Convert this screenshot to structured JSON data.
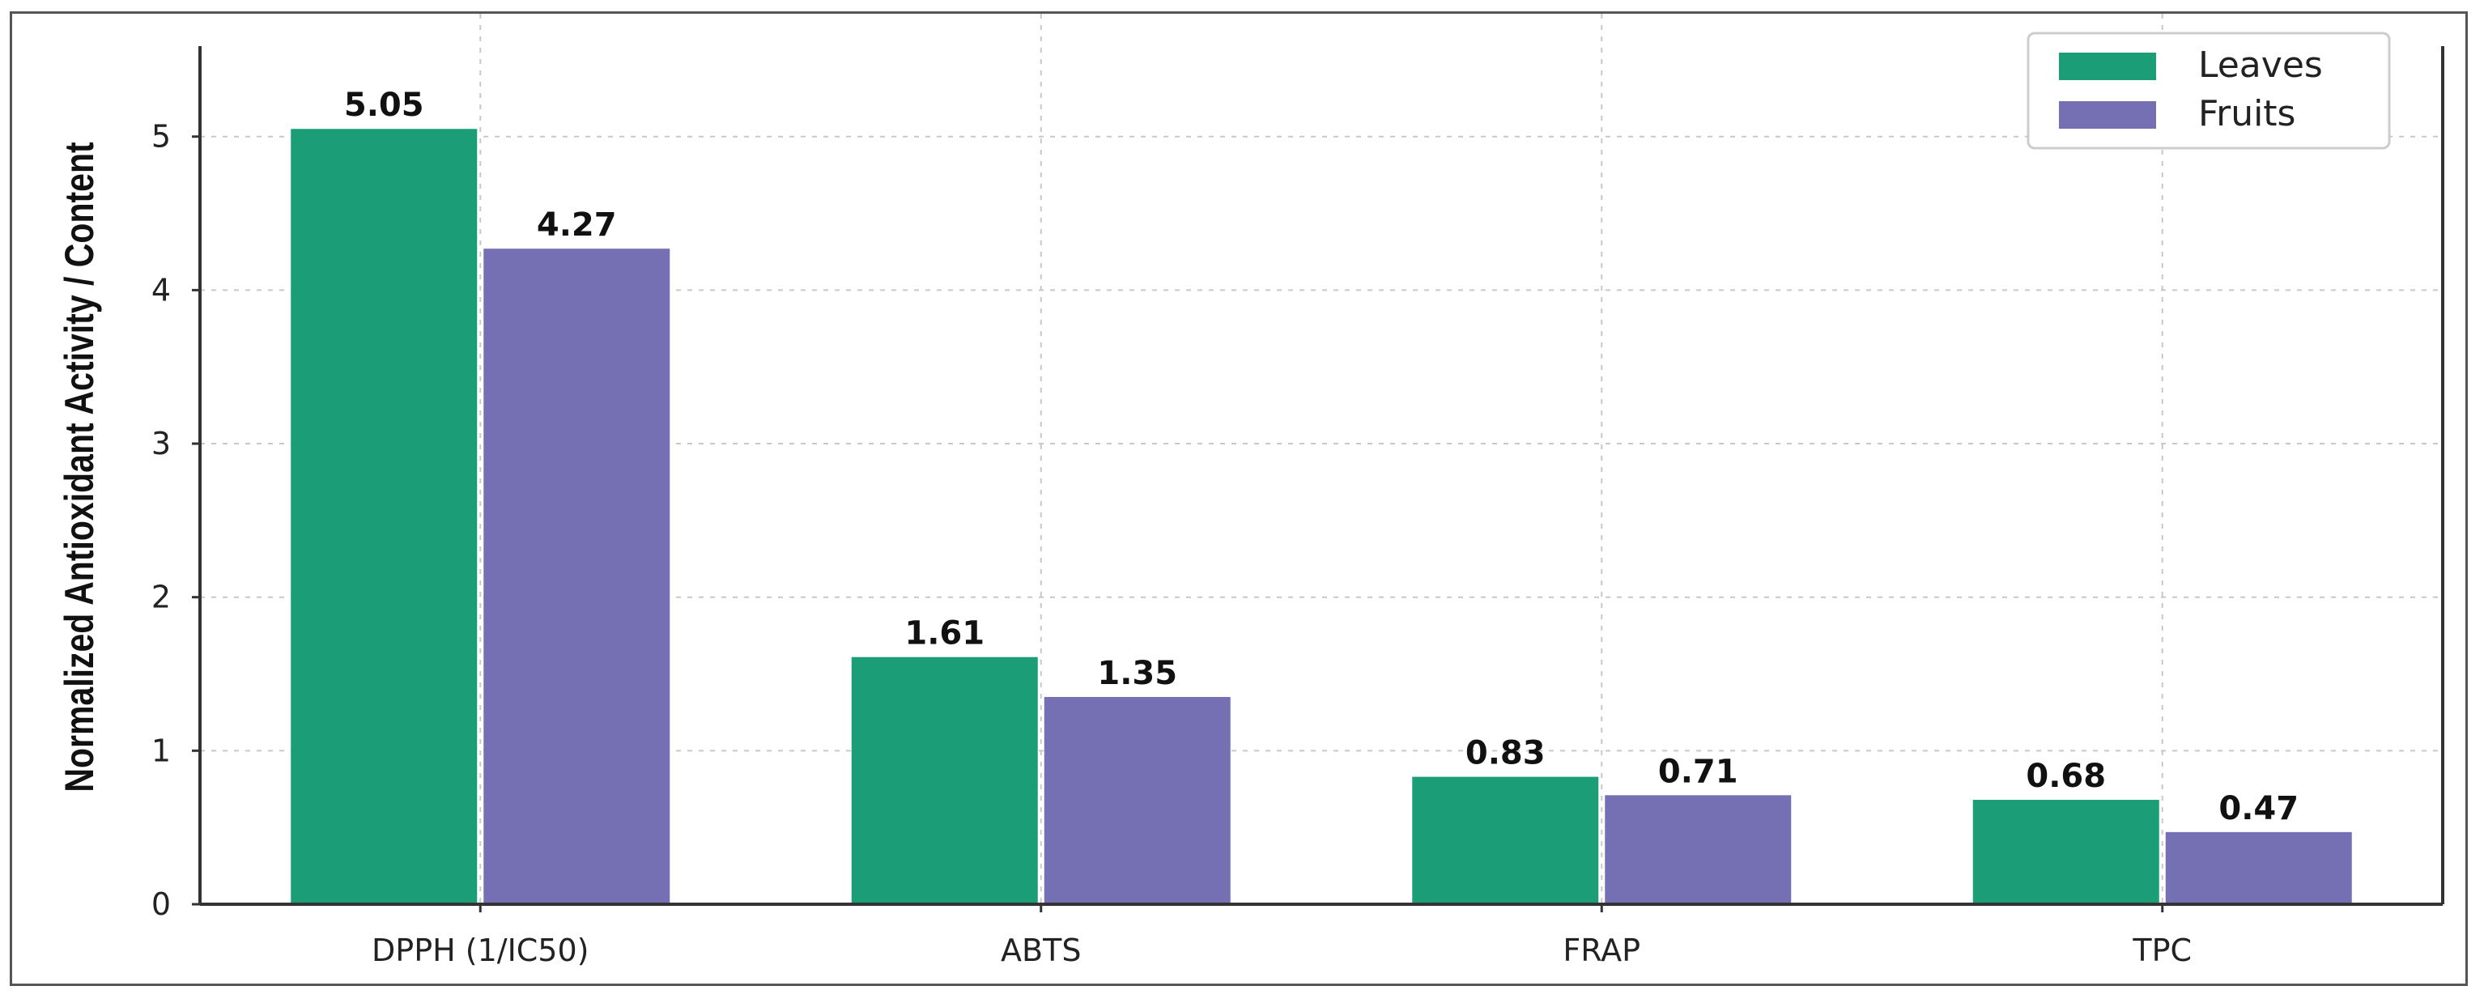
{
  "chart_data": {
    "type": "bar",
    "categories": [
      "DPPH (1/IC50)",
      "ABTS",
      "FRAP",
      "TPC"
    ],
    "series": [
      {
        "name": "Leaves",
        "values": [
          5.05,
          1.61,
          0.83,
          0.68
        ],
        "color": "#1b9e77"
      },
      {
        "name": "Fruits",
        "values": [
          4.27,
          1.35,
          0.71,
          0.47
        ],
        "color": "#7570b3"
      }
    ],
    "value_labels": [
      [
        "5.05",
        "1.61",
        "0.83",
        "0.68"
      ],
      [
        "4.27",
        "1.35",
        "0.71",
        "0.47"
      ]
    ],
    "title": "",
    "xlabel": "",
    "ylabel": "Normalized Antioxidant Activity / Content",
    "ylim": [
      0,
      5.8
    ],
    "yticks": [
      0,
      1,
      2,
      3,
      4,
      5
    ],
    "grid": true,
    "legend_position": "top-right"
  }
}
